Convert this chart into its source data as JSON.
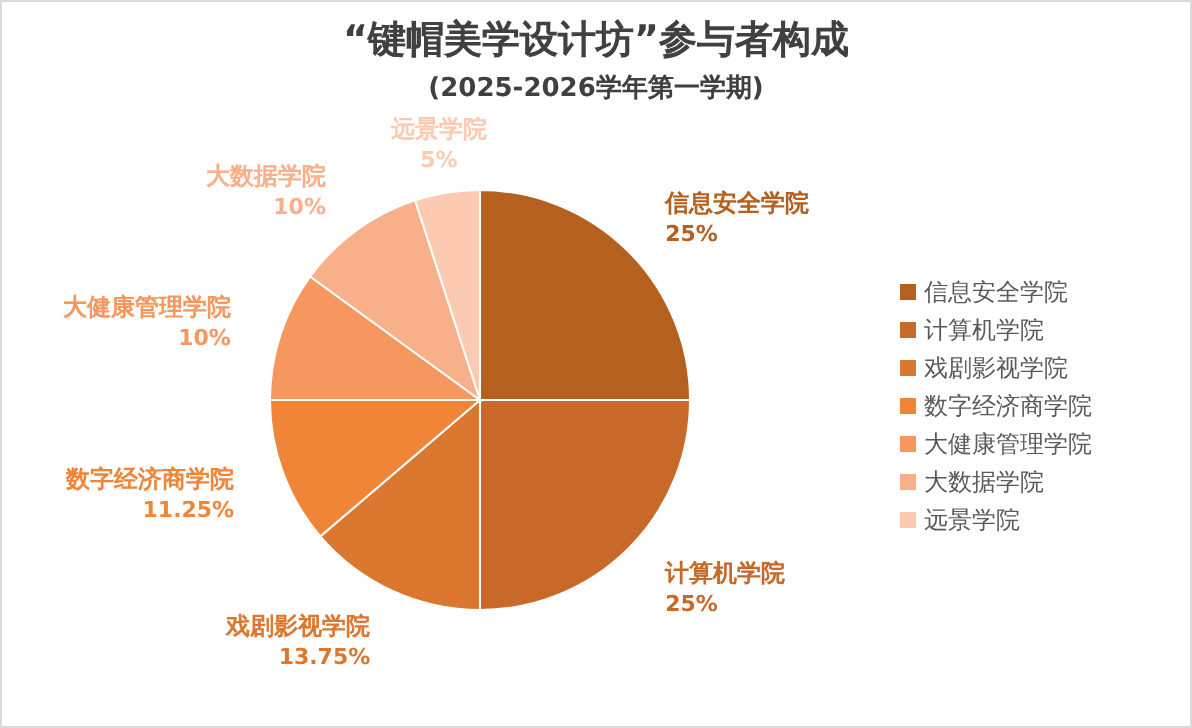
{
  "chart_data": {
    "type": "pie",
    "title": "“键帽美学设计坊”参与者构成",
    "subtitle": "(2025-2026学年第一学期)",
    "categories": [
      "信息安全学院",
      "计算机学院",
      "戏剧影视学院",
      "数字经济商学院",
      "大健康管理学院",
      "大数据学院",
      "远景学院"
    ],
    "values": [
      25,
      25,
      13.75,
      11.25,
      10,
      10,
      5
    ],
    "colors": [
      "#b5601f",
      "#c8692a",
      "#dc772f",
      "#f08538",
      "#f5975f",
      "#f8b08a",
      "#fbcab0"
    ],
    "value_labels": [
      "25%",
      "25%",
      "13.75%",
      "11.25%",
      "10%",
      "10%",
      "5%"
    ],
    "legend": "right"
  }
}
